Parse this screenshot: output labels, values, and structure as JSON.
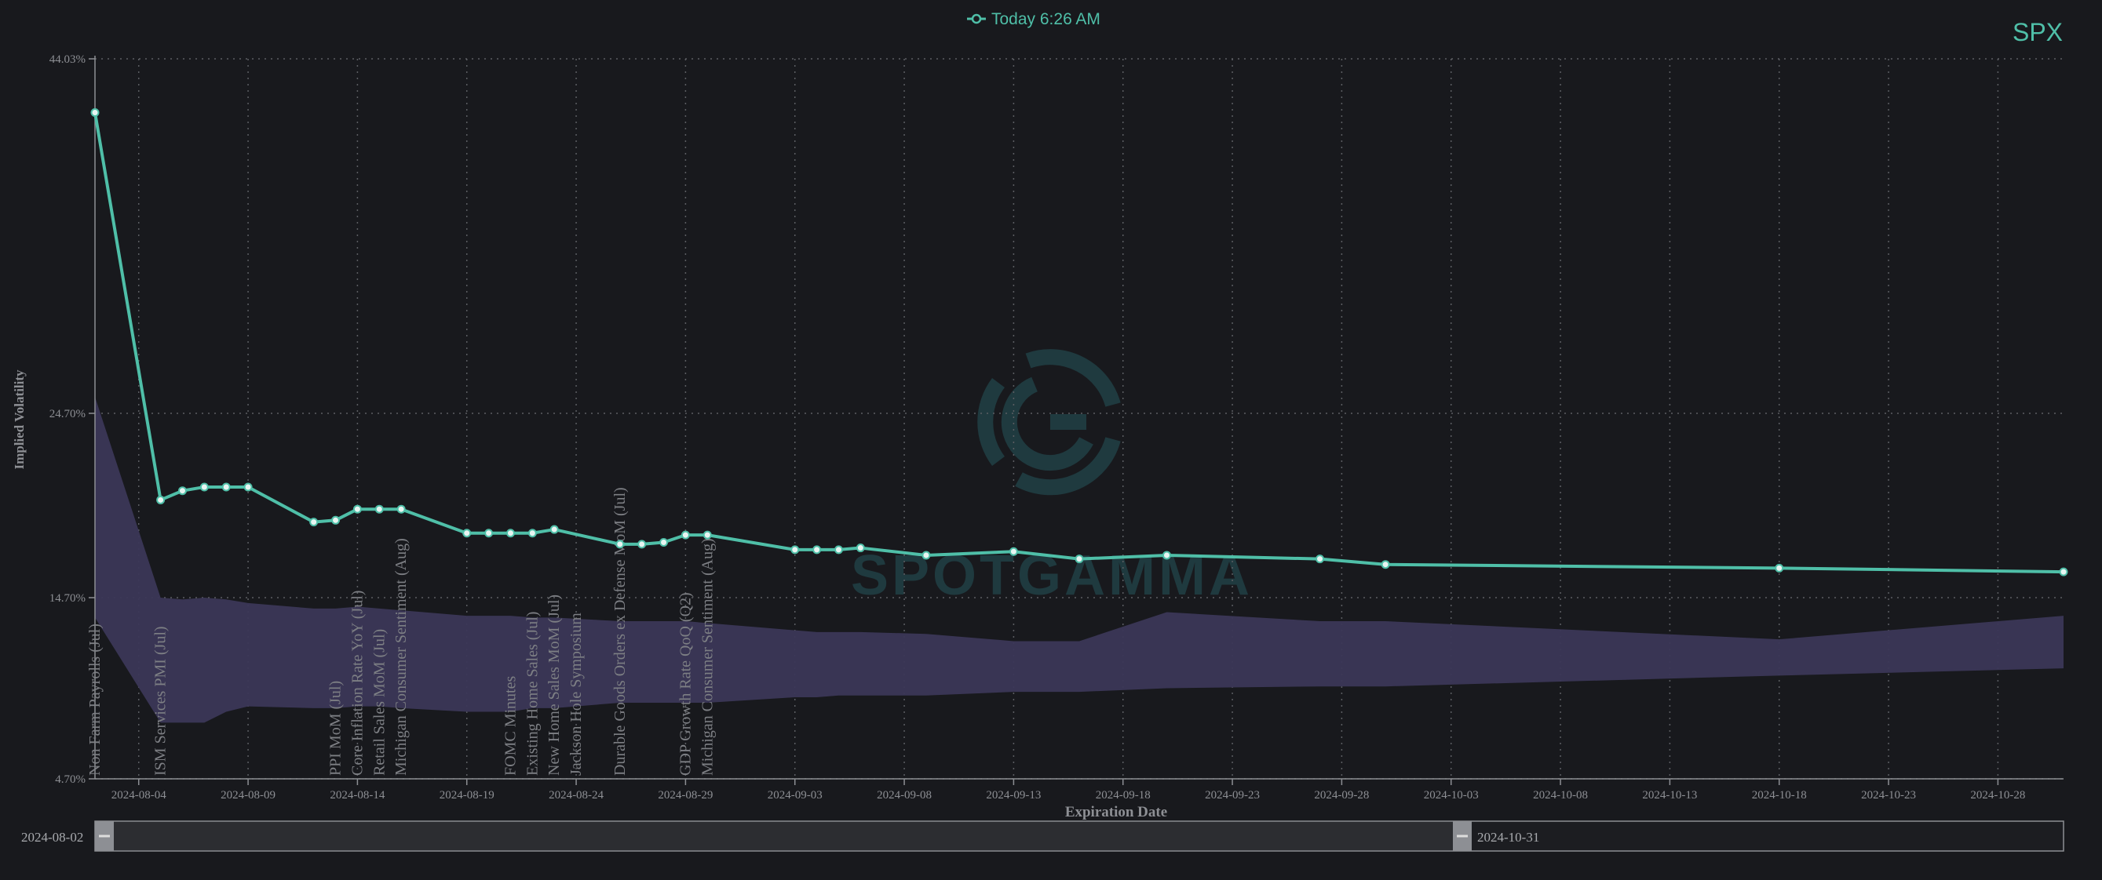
{
  "ticker": "SPX",
  "legend": {
    "label": "Today 6:26 AM"
  },
  "watermark": "SPOTGAMMA",
  "colors": {
    "background": "#18191d",
    "line": "#4fbfa8",
    "band": "#3b3757",
    "grid": "#5c5e63",
    "axis_text": "#8d8f94",
    "event_text": "#7d7f84",
    "ticker": "#4fbfa8",
    "watermark": "#1f3a3f"
  },
  "range_selector": {
    "start_label": "2024-08-02",
    "end_label": "2024-10-31"
  },
  "chart_data": {
    "type": "line",
    "xlabel": "Expiration Date",
    "ylabel": "Implied Volatility",
    "xlim": [
      "2024-08-02",
      "2024-10-31"
    ],
    "ylim": [
      4.7,
      44.03
    ],
    "y_ticks": [
      "44.03%",
      "24.70%",
      "14.70%",
      "4.70%"
    ],
    "y_tick_values": [
      44.03,
      24.7,
      14.7,
      4.7
    ],
    "x_ticks": [
      "2024-08-04",
      "2024-08-09",
      "2024-08-14",
      "2024-08-19",
      "2024-08-24",
      "2024-08-29",
      "2024-09-03",
      "2024-09-08",
      "2024-09-13",
      "2024-09-18",
      "2024-09-23",
      "2024-09-28",
      "2024-10-03",
      "2024-10-08",
      "2024-10-13",
      "2024-10-18",
      "2024-10-23",
      "2024-10-28"
    ],
    "grid": true,
    "legend_position": "top-center",
    "series": [
      {
        "name": "Today 6:26 AM",
        "x": [
          "2024-08-02",
          "2024-08-05",
          "2024-08-06",
          "2024-08-07",
          "2024-08-08",
          "2024-08-09",
          "2024-08-12",
          "2024-08-13",
          "2024-08-14",
          "2024-08-15",
          "2024-08-16",
          "2024-08-19",
          "2024-08-20",
          "2024-08-21",
          "2024-08-22",
          "2024-08-23",
          "2024-08-26",
          "2024-08-27",
          "2024-08-28",
          "2024-08-29",
          "2024-08-30",
          "2024-09-03",
          "2024-09-04",
          "2024-09-05",
          "2024-09-06",
          "2024-09-09",
          "2024-09-13",
          "2024-09-16",
          "2024-09-20",
          "2024-09-27",
          "2024-09-30",
          "2024-10-18",
          "2024-10-31"
        ],
        "y": [
          41.1,
          20.0,
          20.5,
          20.7,
          20.7,
          20.7,
          18.8,
          18.9,
          19.5,
          19.5,
          19.5,
          18.2,
          18.2,
          18.2,
          18.2,
          18.4,
          17.6,
          17.6,
          17.7,
          18.1,
          18.1,
          17.3,
          17.3,
          17.3,
          17.4,
          17.0,
          17.2,
          16.8,
          17.0,
          16.8,
          16.5,
          16.3,
          16.1
        ]
      }
    ],
    "band": {
      "x": [
        "2024-08-02",
        "2024-08-05",
        "2024-08-06",
        "2024-08-07",
        "2024-08-08",
        "2024-08-09",
        "2024-08-12",
        "2024-08-13",
        "2024-08-14",
        "2024-08-15",
        "2024-08-16",
        "2024-08-19",
        "2024-08-20",
        "2024-08-21",
        "2024-08-22",
        "2024-08-23",
        "2024-08-26",
        "2024-08-27",
        "2024-08-28",
        "2024-08-29",
        "2024-08-30",
        "2024-09-03",
        "2024-09-04",
        "2024-09-05",
        "2024-09-06",
        "2024-09-09",
        "2024-09-13",
        "2024-09-16",
        "2024-09-20",
        "2024-09-27",
        "2024-09-30",
        "2024-10-18",
        "2024-10-31"
      ],
      "upper": [
        25.6,
        14.7,
        14.6,
        14.7,
        14.6,
        14.4,
        14.1,
        14.1,
        14.2,
        14.1,
        14.0,
        13.7,
        13.7,
        13.7,
        13.6,
        13.6,
        13.4,
        13.4,
        13.4,
        13.4,
        13.3,
        12.9,
        12.8,
        12.8,
        12.8,
        12.7,
        12.3,
        12.3,
        13.9,
        13.4,
        13.4,
        12.4,
        13.7
      ],
      "lower": [
        13.6,
        7.8,
        7.8,
        7.8,
        8.4,
        8.7,
        8.6,
        8.6,
        8.7,
        8.7,
        8.6,
        8.4,
        8.4,
        8.4,
        8.6,
        8.6,
        8.9,
        8.9,
        8.9,
        8.9,
        8.9,
        9.2,
        9.2,
        9.3,
        9.3,
        9.3,
        9.5,
        9.5,
        9.7,
        9.8,
        9.8,
        10.4,
        10.8
      ]
    },
    "annotations": [
      {
        "date": "2024-08-02",
        "label": "Non Farm Payrolls (Jul)"
      },
      {
        "date": "2024-08-05",
        "label": "ISM Services PMI (Jul)"
      },
      {
        "date": "2024-08-13",
        "label": "PPI MoM (Jul)"
      },
      {
        "date": "2024-08-14",
        "label": "Core Inflation Rate YoY (Jul)"
      },
      {
        "date": "2024-08-15",
        "label": "Retail Sales MoM (Jul)"
      },
      {
        "date": "2024-08-16",
        "label": "Michigan Consumer Sentiment (Aug)"
      },
      {
        "date": "2024-08-21",
        "label": "FOMC Minutes"
      },
      {
        "date": "2024-08-22",
        "label": "Existing Home Sales (Jul)"
      },
      {
        "date": "2024-08-23",
        "label": "New Home Sales MoM (Jul)"
      },
      {
        "date": "2024-08-24",
        "label": "Jackson Hole Symposium"
      },
      {
        "date": "2024-08-26",
        "label": "Durable Goods Orders ex Defense MoM (Jul)"
      },
      {
        "date": "2024-08-29",
        "label": "GDP Growth Rate QoQ (Q2)"
      },
      {
        "date": "2024-08-30",
        "label": "Michigan Consumer Sentiment (Aug)"
      }
    ]
  }
}
